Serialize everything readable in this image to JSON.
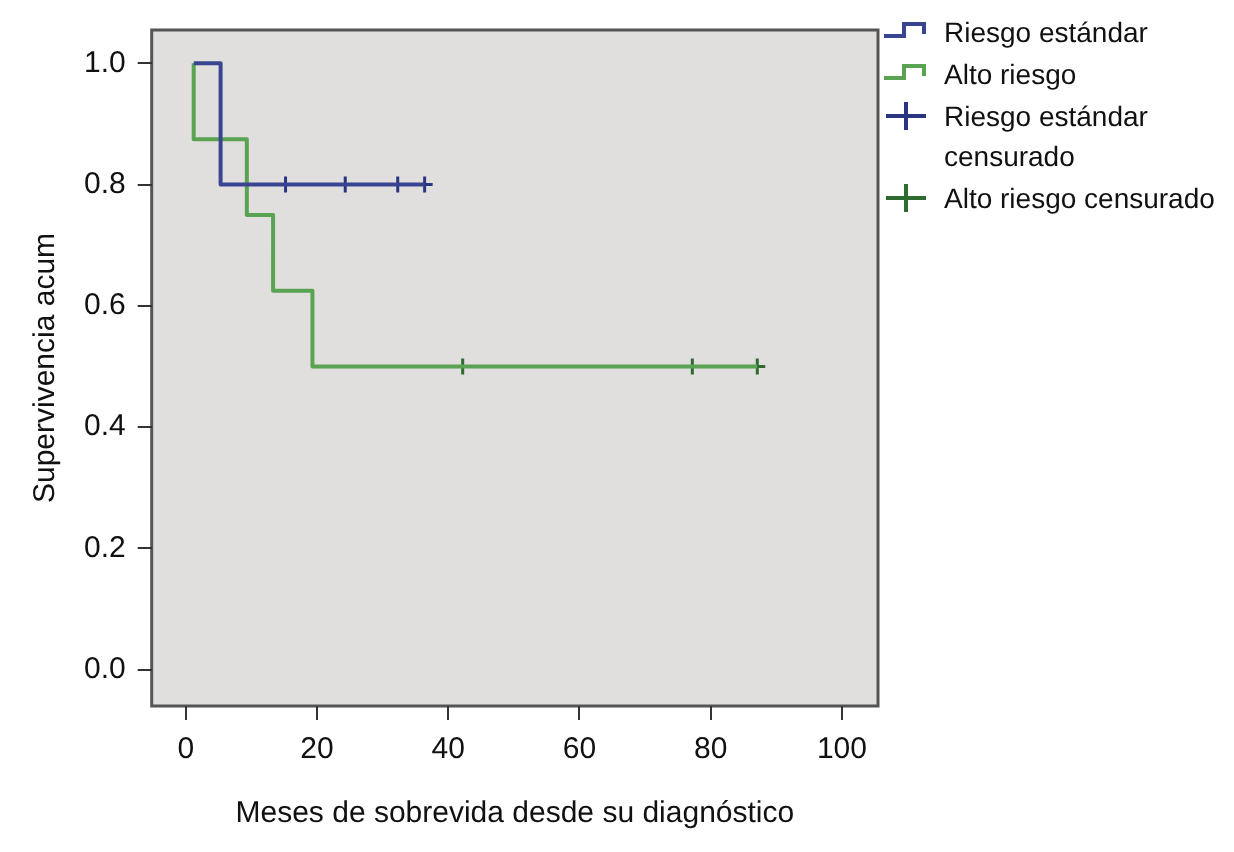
{
  "chart_data": {
    "type": "step",
    "xlabel": "Meses de sobrevida desde su diagnóstico",
    "ylabel": "Supervivencia acum",
    "xlim": [
      -5.2,
      105.5
    ],
    "xticks": [
      0,
      20,
      40,
      60,
      80,
      100
    ],
    "ylim": [
      -0.06,
      1.055
    ],
    "yticks": [
      {
        "value": 0,
        "label": "0.0"
      },
      {
        "value": 0.2,
        "label": "0.2"
      },
      {
        "value": 0.4,
        "label": "0.4"
      },
      {
        "value": 0.6,
        "label": "0.6"
      },
      {
        "value": 0.8,
        "label": "0.8"
      },
      {
        "value": 1,
        "label": "1.0"
      }
    ],
    "grid": false,
    "legend": "right",
    "line_style": "solid",
    "series": [
      {
        "name": "Riesgo estándar",
        "color": "#3a4592",
        "x": [
          1.2,
          5.3,
          36.4
        ],
        "values": [
          1.0,
          0.8,
          0.8
        ]
      },
      {
        "name": "Alto riesgo",
        "color": "#5aa352",
        "x": [
          1.2,
          1.2,
          9.3,
          13.3,
          19.3,
          87.1
        ],
        "values": [
          1.0,
          0.875,
          0.75,
          0.625,
          0.5,
          0.5
        ]
      },
      {
        "name": "Riesgo estándar censurado",
        "type": "scatter",
        "marker": "cross",
        "color": "#2a3580",
        "x": [
          15.2,
          24.3,
          32.3,
          36.4
        ],
        "values": [
          0.8,
          0.8,
          0.8,
          0.8
        ]
      },
      {
        "name": "Alto riesgo censurado",
        "type": "scatter",
        "marker": "cross",
        "color": "#2f6a30",
        "x": [
          42.2,
          77.2,
          87.1
        ],
        "values": [
          0.5,
          0.5,
          0.5
        ]
      }
    ]
  }
}
